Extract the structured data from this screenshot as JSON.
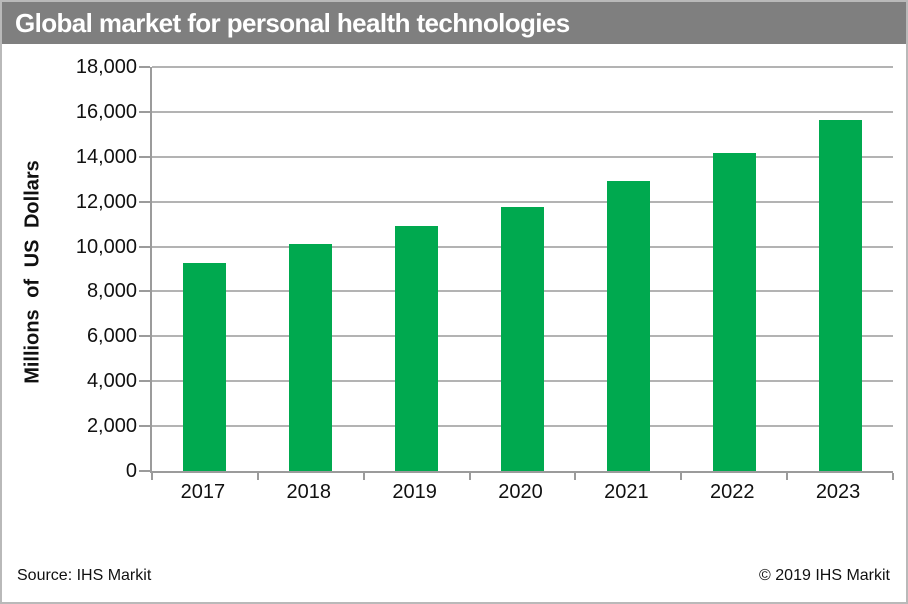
{
  "title": "Global market for personal health technologies",
  "footer": {
    "source": "Source: IHS Markit",
    "copyright": "© 2019 IHS Markit"
  },
  "colors": {
    "title_bar_bg": "#7f7f7f",
    "title_text": "#ffffff",
    "bar": "#00a94f",
    "gridline": "#b3b3b3",
    "axis": "#9b9b9b",
    "text": "#111111",
    "frame_border": "#b9b9b9"
  },
  "chart_data": {
    "type": "bar",
    "title": "Global market for personal health technologies",
    "categories": [
      "2017",
      "2018",
      "2019",
      "2020",
      "2021",
      "2022",
      "2023"
    ],
    "values": [
      9250,
      10100,
      10900,
      11750,
      12900,
      14150,
      15650
    ],
    "xlabel": "",
    "ylabel": "Millions of US Dollars",
    "ylim": [
      0,
      18000
    ],
    "yticks": [
      0,
      2000,
      4000,
      6000,
      8000,
      10000,
      12000,
      14000,
      16000,
      18000
    ],
    "ytick_labels": [
      "0",
      "2,000",
      "4,000",
      "6,000",
      "8,000",
      "10,000",
      "12,000",
      "14,000",
      "16,000",
      "18,000"
    ],
    "grid": "horizontal",
    "legend": "none",
    "bar_color": "#00a94f"
  }
}
